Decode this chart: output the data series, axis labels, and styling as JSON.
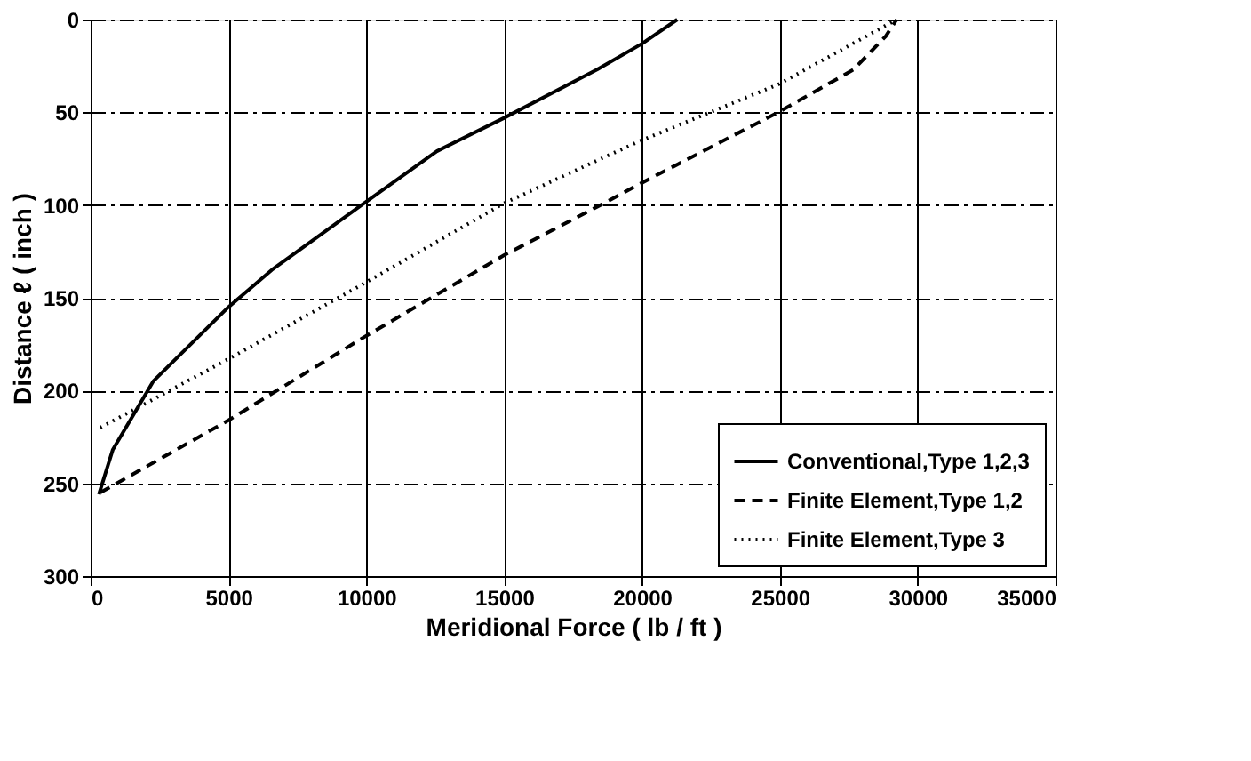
{
  "chart_data": {
    "type": "line",
    "xlabel": "Meridional Force ( lb / ft )",
    "ylabel": "Distance ℓ ( inch )",
    "xlim": [
      0,
      35000
    ],
    "xticks": [
      0,
      5000,
      10000,
      15000,
      20000,
      25000,
      30000,
      35000
    ],
    "ylim": [
      300,
      0
    ],
    "yticks": [
      0,
      50,
      100,
      150,
      200,
      250,
      300
    ],
    "grid": true,
    "legend": "bottom right",
    "marker": "none",
    "series": [
      {
        "name": "Conventional,Type 1,2,3",
        "color": "#000000",
        "line_style": "solid",
        "x": [
          300,
          800,
          2270,
          5000,
          6570,
          9830,
          12560,
          15000,
          18370,
          20000,
          21280
        ],
        "values": [
          256,
          232,
          195,
          155,
          135,
          100,
          71,
          53,
          27,
          13,
          0
        ]
      },
      {
        "name": "Finite Element,Type 1,2",
        "color": "#000000",
        "line_style": "dashed",
        "x": [
          350,
          5000,
          9830,
          15000,
          18370,
          20000,
          24940,
          27670,
          28840,
          29240
        ],
        "values": [
          255,
          216,
          172,
          127,
          101,
          88,
          50,
          27,
          9,
          0
        ]
      },
      {
        "name": "Finite Element,Type 3",
        "color": "#000000",
        "line_style": "dotted",
        "x": [
          350,
          5000,
          9830,
          15000,
          18370,
          20000,
          24940,
          29240
        ],
        "values": [
          220,
          183,
          143,
          99,
          76,
          65,
          35,
          0
        ]
      }
    ]
  }
}
